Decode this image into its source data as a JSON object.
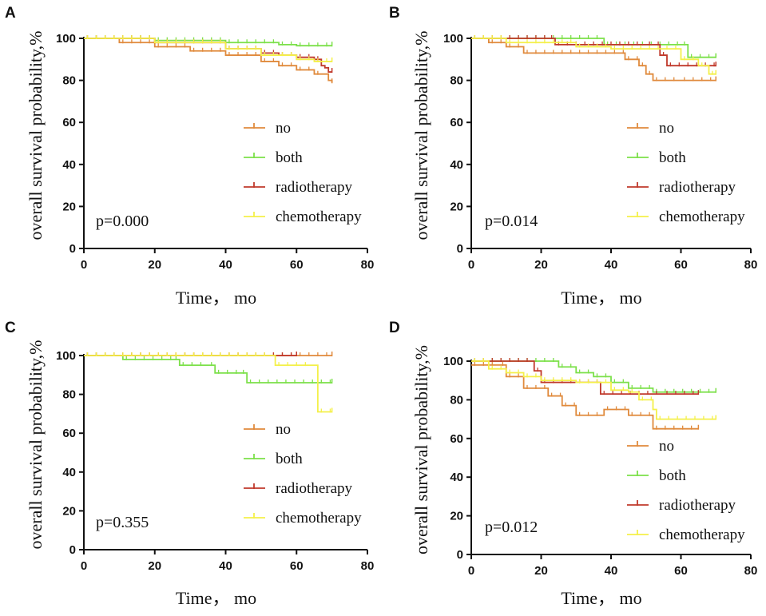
{
  "chart_data": [
    {
      "panel": "A",
      "type": "line",
      "xlabel": "Time， mo",
      "ylabel": "overall survival probability,%",
      "xlim": [
        0,
        80
      ],
      "ylim": [
        0,
        100
      ],
      "xticks": [
        0,
        20,
        40,
        60,
        80
      ],
      "yticks": [
        0,
        20,
        40,
        60,
        80,
        100
      ],
      "pvalue": "p=0.000",
      "legend": [
        "no",
        "both",
        "radiotherapy",
        "chemotherapy"
      ],
      "series": [
        {
          "name": "no",
          "color": "#E08A3C",
          "points": [
            [
              0,
              100
            ],
            [
              10,
              98
            ],
            [
              20,
              96
            ],
            [
              30,
              94
            ],
            [
              40,
              92
            ],
            [
              50,
              89
            ],
            [
              55,
              87
            ],
            [
              60,
              85
            ],
            [
              65,
              83
            ],
            [
              68,
              83
            ],
            [
              69,
              80
            ],
            [
              70,
              79
            ]
          ]
        },
        {
          "name": "both",
          "color": "#7CE04A",
          "points": [
            [
              0,
              100
            ],
            [
              20,
              99
            ],
            [
              40,
              98
            ],
            [
              55,
              97
            ],
            [
              60,
              96.5
            ],
            [
              70,
              96.5
            ]
          ]
        },
        {
          "name": "radiotherapy",
          "color": "#C0392B",
          "points": [
            [
              0,
              100
            ],
            [
              20,
              98
            ],
            [
              40,
              95
            ],
            [
              50,
              93
            ],
            [
              55,
              92
            ],
            [
              60,
              91
            ],
            [
              65,
              90
            ],
            [
              67,
              87
            ],
            [
              68,
              86
            ],
            [
              69,
              84
            ],
            [
              70,
              84
            ]
          ]
        },
        {
          "name": "chemotherapy",
          "color": "#F4F04A",
          "points": [
            [
              0,
              100
            ],
            [
              20,
              98
            ],
            [
              40,
              95
            ],
            [
              50,
              92
            ],
            [
              60,
              90
            ],
            [
              65,
              89
            ],
            [
              70,
              89
            ]
          ]
        }
      ]
    },
    {
      "panel": "B",
      "type": "line",
      "xlabel": "Time， mo",
      "ylabel": "overall survival probability,%",
      "xlim": [
        0,
        80
      ],
      "ylim": [
        0,
        100
      ],
      "xticks": [
        0,
        20,
        40,
        60,
        80
      ],
      "yticks": [
        0,
        20,
        40,
        60,
        80,
        100
      ],
      "pvalue": "p=0.014",
      "legend": [
        "no",
        "both",
        "radiotherapy",
        "chemotherapy"
      ],
      "series": [
        {
          "name": "no",
          "color": "#E08A3C",
          "points": [
            [
              0,
              100
            ],
            [
              5,
              98
            ],
            [
              10,
              96
            ],
            [
              15,
              93
            ],
            [
              20,
              93
            ],
            [
              40,
              93
            ],
            [
              44,
              90
            ],
            [
              48,
              87
            ],
            [
              50,
              83
            ],
            [
              52,
              80
            ],
            [
              60,
              80
            ],
            [
              70,
              80
            ]
          ]
        },
        {
          "name": "both",
          "color": "#7CE04A",
          "points": [
            [
              0,
              100
            ],
            [
              35,
              100
            ],
            [
              38,
              97
            ],
            [
              60,
              97
            ],
            [
              62,
              91
            ],
            [
              70,
              91
            ]
          ]
        },
        {
          "name": "radiotherapy",
          "color": "#C0392B",
          "points": [
            [
              0,
              100
            ],
            [
              22,
              100
            ],
            [
              24,
              97
            ],
            [
              50,
              97
            ],
            [
              54,
              92
            ],
            [
              56,
              87
            ],
            [
              70,
              87
            ]
          ]
        },
        {
          "name": "chemotherapy",
          "color": "#F4F04A",
          "points": [
            [
              0,
              100
            ],
            [
              10,
              98
            ],
            [
              30,
              96
            ],
            [
              40,
              95
            ],
            [
              55,
              95
            ],
            [
              60,
              90
            ],
            [
              65,
              87
            ],
            [
              68,
              83
            ],
            [
              70,
              83
            ]
          ]
        }
      ]
    },
    {
      "panel": "C",
      "type": "line",
      "xlabel": "Time， mo",
      "ylabel": "overall survival probability,%",
      "xlim": [
        0,
        80
      ],
      "ylim": [
        0,
        100
      ],
      "xticks": [
        0,
        20,
        40,
        60,
        80
      ],
      "yticks": [
        0,
        20,
        40,
        60,
        80,
        100
      ],
      "pvalue": "p=0.355",
      "legend": [
        "no",
        "both",
        "radiotherapy",
        "chemotherapy"
      ],
      "series": [
        {
          "name": "no",
          "color": "#E08A3C",
          "points": [
            [
              0,
              100
            ],
            [
              70,
              100
            ]
          ]
        },
        {
          "name": "both",
          "color": "#7CE04A",
          "points": [
            [
              0,
              100
            ],
            [
              10,
              100
            ],
            [
              11,
              98
            ],
            [
              25,
              98
            ],
            [
              27,
              95
            ],
            [
              35,
              95
            ],
            [
              37,
              91
            ],
            [
              44,
              91
            ],
            [
              46,
              86
            ],
            [
              70,
              86
            ]
          ]
        },
        {
          "name": "radiotherapy",
          "color": "#C0392B",
          "points": [
            [
              0,
              100
            ],
            [
              60,
              100
            ]
          ]
        },
        {
          "name": "chemotherapy",
          "color": "#F4F04A",
          "points": [
            [
              0,
              100
            ],
            [
              53,
              100
            ],
            [
              54,
              95
            ],
            [
              65,
              95
            ],
            [
              66,
              71
            ],
            [
              70,
              71
            ]
          ]
        }
      ]
    },
    {
      "panel": "D",
      "type": "line",
      "xlabel": "Time， mo",
      "ylabel": "overall survival probability,%",
      "xlim": [
        0,
        80
      ],
      "ylim": [
        0,
        100
      ],
      "xticks": [
        0,
        20,
        40,
        60,
        80
      ],
      "yticks": [
        0,
        20,
        40,
        60,
        80,
        100
      ],
      "pvalue": "p=0.012",
      "legend": [
        "no",
        "both",
        "radiotherapy",
        "chemotherapy"
      ],
      "series": [
        {
          "name": "no",
          "color": "#E08A3C",
          "points": [
            [
              0,
              98
            ],
            [
              8,
              98
            ],
            [
              10,
              92
            ],
            [
              15,
              86
            ],
            [
              20,
              86
            ],
            [
              22,
              82
            ],
            [
              26,
              77
            ],
            [
              30,
              72
            ],
            [
              35,
              72
            ],
            [
              38,
              75
            ],
            [
              45,
              72
            ],
            [
              50,
              72
            ],
            [
              52,
              65
            ],
            [
              65,
              65
            ]
          ]
        },
        {
          "name": "both",
          "color": "#7CE04A",
          "points": [
            [
              0,
              100
            ],
            [
              20,
              100
            ],
            [
              25,
              97
            ],
            [
              30,
              94
            ],
            [
              35,
              92
            ],
            [
              40,
              89
            ],
            [
              45,
              86
            ],
            [
              50,
              86
            ],
            [
              52,
              84
            ],
            [
              70,
              84
            ]
          ]
        },
        {
          "name": "radiotherapy",
          "color": "#C0392B",
          "points": [
            [
              0,
              100
            ],
            [
              15,
              100
            ],
            [
              18,
              95
            ],
            [
              20,
              89
            ],
            [
              30,
              89
            ],
            [
              35,
              89
            ],
            [
              37,
              83
            ],
            [
              55,
              83
            ],
            [
              65,
              83
            ]
          ]
        },
        {
          "name": "chemotherapy",
          "color": "#F4F04A",
          "points": [
            [
              0,
              100
            ],
            [
              5,
              96
            ],
            [
              10,
              94
            ],
            [
              15,
              92
            ],
            [
              20,
              90
            ],
            [
              30,
              89
            ],
            [
              40,
              85
            ],
            [
              45,
              84
            ],
            [
              48,
              80
            ],
            [
              52,
              75
            ],
            [
              53,
              70
            ],
            [
              70,
              70
            ]
          ]
        }
      ]
    }
  ]
}
